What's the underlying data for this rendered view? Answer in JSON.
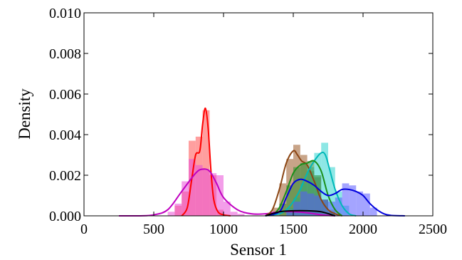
{
  "chart_data": {
    "type": "area",
    "xlabel": "Sensor 1",
    "ylabel": "Density",
    "xlim": [
      0,
      2500
    ],
    "ylim": [
      0,
      0.01
    ],
    "x_ticks": [
      "0",
      "500",
      "1000",
      "1500",
      "2000",
      "2500"
    ],
    "y_ticks": [
      "0.000",
      "0.002",
      "0.004",
      "0.006",
      "0.008",
      "0.010"
    ],
    "grid": false,
    "histograms": [
      {
        "color": "#ff6b6b",
        "opacity": 0.65,
        "bin_width": 50,
        "bins": [
          [
            650,
            0.0005
          ],
          [
            700,
            0.0012
          ],
          [
            750,
            0.0037
          ],
          [
            800,
            0.0039
          ],
          [
            850,
            0.0052
          ],
          [
            900,
            0.002
          ],
          [
            950,
            0.0003
          ]
        ]
      },
      {
        "color": "#e94fd7",
        "opacity": 0.55,
        "bin_width": 50,
        "bins": [
          [
            600,
            0.0002
          ],
          [
            650,
            0.0006
          ],
          [
            700,
            0.0017
          ],
          [
            750,
            0.0028
          ],
          [
            800,
            0.0025
          ],
          [
            850,
            0.0023
          ],
          [
            900,
            0.0021
          ],
          [
            950,
            0.002
          ],
          [
            1000,
            0.0007
          ],
          [
            1050,
            0.0002
          ],
          [
            1100,
            0.0001
          ]
        ]
      },
      {
        "color": "#9a5a26",
        "opacity": 0.55,
        "bin_width": 50,
        "bins": [
          [
            1350,
            0.0004
          ],
          [
            1400,
            0.0016
          ],
          [
            1450,
            0.0028
          ],
          [
            1500,
            0.0035
          ],
          [
            1550,
            0.003
          ],
          [
            1600,
            0.0022
          ],
          [
            1650,
            0.0019
          ],
          [
            1700,
            0.0008
          ],
          [
            1750,
            0.0003
          ]
        ]
      },
      {
        "color": "#2fd3cf",
        "opacity": 0.55,
        "bin_width": 50,
        "bins": [
          [
            1450,
            0.0004
          ],
          [
            1500,
            0.0009
          ],
          [
            1550,
            0.0016
          ],
          [
            1600,
            0.0024
          ],
          [
            1650,
            0.0031
          ],
          [
            1700,
            0.0036
          ],
          [
            1750,
            0.0024
          ],
          [
            1800,
            0.0012
          ],
          [
            1850,
            0.0005
          ]
        ]
      },
      {
        "color": "#2e8b2e",
        "opacity": 0.55,
        "bin_width": 50,
        "bins": [
          [
            1400,
            0.0006
          ],
          [
            1450,
            0.0015
          ],
          [
            1500,
            0.0024
          ],
          [
            1550,
            0.0026
          ],
          [
            1600,
            0.0027
          ],
          [
            1650,
            0.002
          ],
          [
            1700,
            0.0008
          ],
          [
            1750,
            0.0002
          ]
        ]
      },
      {
        "color": "#5a5aff",
        "opacity": 0.55,
        "bin_width": 50,
        "bins": [
          [
            1450,
            0.0003
          ],
          [
            1500,
            0.0007
          ],
          [
            1550,
            0.0012
          ],
          [
            1600,
            0.0011
          ],
          [
            1650,
            0.001
          ],
          [
            1700,
            0.0008
          ],
          [
            1750,
            0.0007
          ],
          [
            1800,
            0.0009
          ],
          [
            1850,
            0.0016
          ],
          [
            1900,
            0.0015
          ],
          [
            1950,
            0.0012
          ],
          [
            2000,
            0.0011
          ],
          [
            2050,
            0.0004
          ]
        ]
      }
    ],
    "series": [
      {
        "color": "#ff0000",
        "x": [
          700,
          740,
          770,
          800,
          830,
          850,
          870,
          890,
          910,
          930,
          960,
          1000,
          1050
        ],
        "y": [
          0.0,
          0.0004,
          0.0017,
          0.003,
          0.0032,
          0.0045,
          0.0053,
          0.0043,
          0.0022,
          0.0008,
          0.0002,
          5e-05,
          0.0
        ]
      },
      {
        "color": "#c000c0",
        "x": [
          250,
          400,
          500,
          600,
          700,
          800,
          850,
          900,
          950,
          1000,
          1100,
          1200,
          1300,
          1400,
          1500,
          1600,
          1700,
          1800
        ],
        "y": [
          0.0,
          0.0,
          5e-05,
          0.0003,
          0.0012,
          0.0021,
          0.0023,
          0.0022,
          0.0016,
          0.0009,
          0.0003,
          0.0001,
          0.0001,
          0.0002,
          0.0002,
          0.00015,
          5e-05,
          0.0
        ]
      },
      {
        "color": "#8b4513",
        "x": [
          1300,
          1350,
          1400,
          1450,
          1500,
          1530,
          1560,
          1600,
          1650,
          1700,
          1750,
          1800,
          1850
        ],
        "y": [
          0.0,
          0.0003,
          0.0013,
          0.0026,
          0.0032,
          0.003,
          0.0027,
          0.0025,
          0.0017,
          0.0008,
          0.0003,
          0.0001,
          0.0
        ]
      },
      {
        "color": "#00b8b8",
        "x": [
          1300,
          1400,
          1450,
          1500,
          1550,
          1600,
          1650,
          1700,
          1730,
          1760,
          1800,
          1850,
          1900,
          1950
        ],
        "y": [
          0.0,
          0.0001,
          0.0003,
          0.0007,
          0.0013,
          0.0021,
          0.0027,
          0.0031,
          0.003,
          0.0023,
          0.0013,
          0.0005,
          0.0001,
          0.0
        ]
      },
      {
        "color": "#1a8f1a",
        "x": [
          1350,
          1400,
          1450,
          1500,
          1550,
          1600,
          1650,
          1700,
          1750,
          1800,
          1850
        ],
        "y": [
          0.0,
          0.0004,
          0.0012,
          0.0021,
          0.0025,
          0.0026,
          0.0027,
          0.0022,
          0.001,
          0.0003,
          0.0
        ]
      },
      {
        "color": "#0000dd",
        "x": [
          1300,
          1400,
          1450,
          1500,
          1550,
          1600,
          1650,
          1700,
          1750,
          1800,
          1850,
          1900,
          1950,
          2000,
          2050,
          2100,
          2150,
          2200,
          2300
        ],
        "y": [
          0.0,
          0.0002,
          0.0009,
          0.0016,
          0.0018,
          0.0017,
          0.0015,
          0.0012,
          0.001,
          0.0011,
          0.0013,
          0.0013,
          0.0012,
          0.001,
          0.0006,
          0.0003,
          0.0001,
          2e-05,
          0.0
        ]
      },
      {
        "color": "#000000",
        "x": [
          1300,
          1400,
          1500,
          1600,
          1700,
          1800
        ],
        "y": [
          0.0,
          0.0002,
          0.00025,
          0.00025,
          0.0002,
          0.0
        ]
      }
    ]
  }
}
